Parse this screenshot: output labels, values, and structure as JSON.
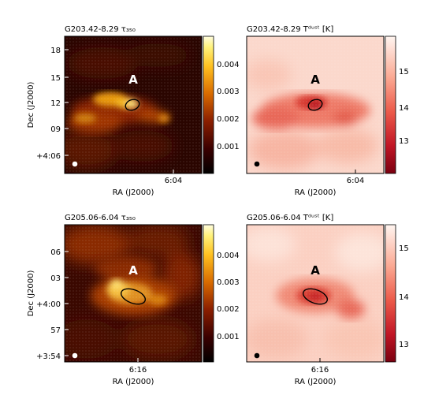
{
  "panels": [
    {
      "id": "p1",
      "title": "G203.42-8.29 τ₃₅₀",
      "map": "tau",
      "xlabel": "RA (J2000)",
      "ylabel": "Dec (J2000)",
      "x_ticks": [
        "6:04"
      ],
      "y_ticks": [
        "18",
        "15",
        "12",
        "09",
        "+4:06"
      ],
      "colorbar_ticks": [
        "0.004",
        "0.003",
        "0.002",
        "0.001"
      ],
      "source_label": "A",
      "beam_color": "#ffffff",
      "ellipse_color": "#000000"
    },
    {
      "id": "p2",
      "title": "G203.42-8.29 Tᵈᵘˢᵗ [K]",
      "map": "tdust",
      "xlabel": "RA (J2000)",
      "ylabel": "",
      "x_ticks": [
        "6:04"
      ],
      "y_ticks": [],
      "colorbar_ticks": [
        "15",
        "14",
        "13"
      ],
      "source_label": "A",
      "beam_color": "#000000",
      "ellipse_color": "#000000"
    },
    {
      "id": "p3",
      "title": "G205.06-6.04 τ₃₅₀",
      "map": "tau",
      "xlabel": "RA (J2000)",
      "ylabel": "Dec (J2000)",
      "x_ticks": [
        "6:16"
      ],
      "y_ticks": [
        "06",
        "03",
        "+4:00",
        "57",
        "+3:54"
      ],
      "colorbar_ticks": [
        "0.004",
        "0.003",
        "0.002",
        "0.001"
      ],
      "source_label": "A",
      "beam_color": "#ffffff",
      "ellipse_color": "#000000"
    },
    {
      "id": "p4",
      "title": "G205.06-6.04 Tᵈᵘˢᵗ [K]",
      "map": "tdust",
      "xlabel": "RA (J2000)",
      "ylabel": "",
      "x_ticks": [
        "6:16"
      ],
      "y_ticks": [],
      "colorbar_ticks": [
        "15",
        "14",
        "13"
      ],
      "source_label": "A",
      "beam_color": "#000000",
      "ellipse_color": "#000000"
    }
  ],
  "chart_data": [
    {
      "type": "heatmap",
      "title": "G203.42-8.29 τ₃₅₀",
      "xlabel": "RA (J2000)",
      "ylabel": "Dec (J2000)",
      "x_ticks": [
        "6:04"
      ],
      "y_ticks": [
        "+4:06",
        "09",
        "12",
        "15",
        "18"
      ],
      "colorbar_range": [
        0.0,
        0.005
      ],
      "colorbar_ticks": [
        0.001,
        0.002,
        0.003,
        0.004
      ],
      "colormap": "afmhot",
      "annotation": "A"
    },
    {
      "type": "heatmap",
      "title": "G203.42-8.29 T_dust [K]",
      "xlabel": "RA (J2000)",
      "x_ticks": [
        "6:04"
      ],
      "colorbar_range": [
        12.2,
        16.0
      ],
      "colorbar_ticks": [
        13,
        14,
        15
      ],
      "colormap": "reds_reversed",
      "annotation": "A"
    },
    {
      "type": "heatmap",
      "title": "G205.06-6.04 τ₃₅₀",
      "xlabel": "RA (J2000)",
      "ylabel": "Dec (J2000)",
      "x_ticks": [
        "6:16"
      ],
      "y_ticks": [
        "+3:54",
        "57",
        "+4:00",
        "03",
        "06"
      ],
      "colorbar_range": [
        0.0,
        0.005
      ],
      "colorbar_ticks": [
        0.001,
        0.002,
        0.003,
        0.004
      ],
      "colormap": "afmhot",
      "annotation": "A"
    },
    {
      "type": "heatmap",
      "title": "G205.06-6.04 T_dust [K]",
      "xlabel": "RA (J2000)",
      "x_ticks": [
        "6:16"
      ],
      "colorbar_range": [
        12.5,
        15.5
      ],
      "colorbar_ticks": [
        13,
        14,
        15
      ],
      "colormap": "reds_reversed",
      "annotation": "A"
    }
  ]
}
